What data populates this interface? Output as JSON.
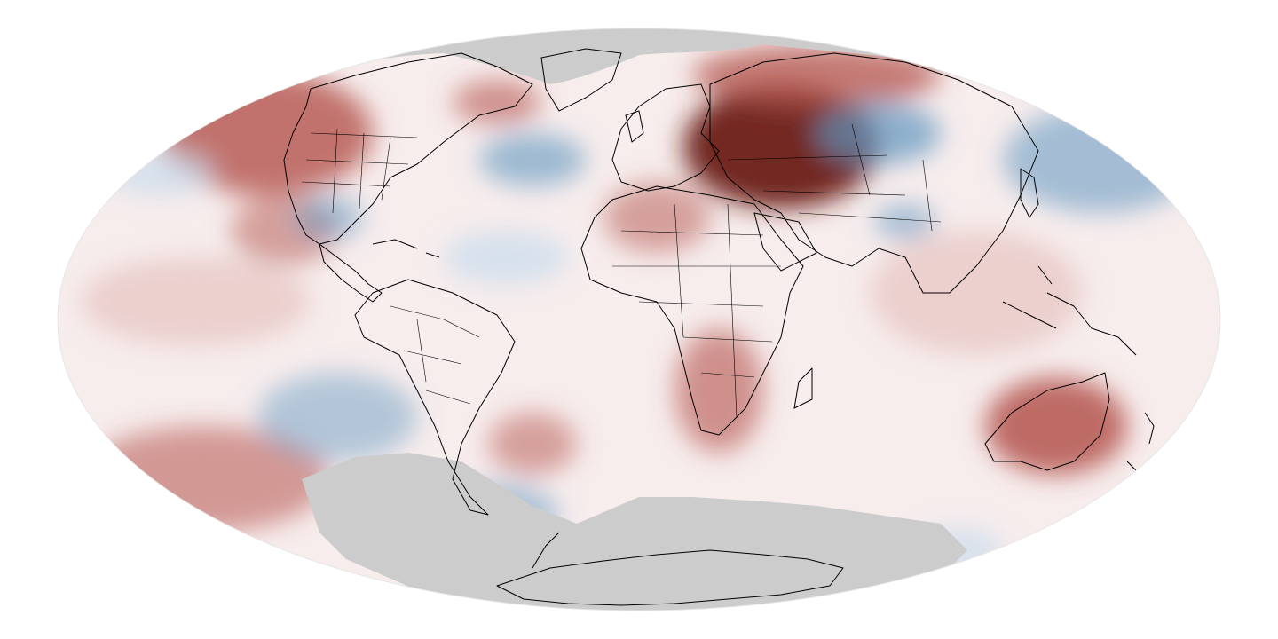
{
  "map": {
    "projection": "mollweide",
    "colors": {
      "background": "#ffffff",
      "no_data": "#cccccc",
      "outline": "#000000",
      "strong_warm": "#6b1e16",
      "warm": "#b4544c",
      "mild_warm": "#e6c3c0",
      "neutral": "#fbf5f5",
      "mild_cool": "#c8dcec",
      "cool": "#5f96bf"
    }
  }
}
